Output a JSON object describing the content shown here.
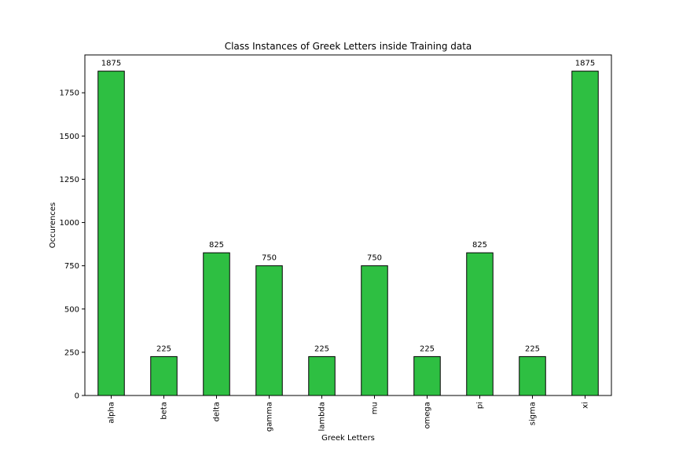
{
  "chart_data": {
    "type": "bar",
    "title": "Class Instances of Greek Letters inside Training data",
    "xlabel": "Greek Letters",
    "ylabel": "Occurences",
    "categories": [
      "alpha",
      "beta",
      "delta",
      "gamma",
      "lambda",
      "mu",
      "omega",
      "pi",
      "sigma",
      "xi"
    ],
    "values": [
      1875,
      225,
      825,
      750,
      225,
      750,
      225,
      825,
      225,
      1875
    ],
    "data_labels": [
      "1875",
      "225",
      "825",
      "750",
      "225",
      "750",
      "225",
      "825",
      "225",
      "1875"
    ],
    "yticks": [
      0,
      250,
      500,
      750,
      1000,
      1250,
      1500,
      1750
    ],
    "ylim": [
      0,
      1968.75
    ],
    "grid": false,
    "legend": "none",
    "colors": {
      "bar_fill": "#2ebf42",
      "bar_edge": "#000000"
    }
  }
}
